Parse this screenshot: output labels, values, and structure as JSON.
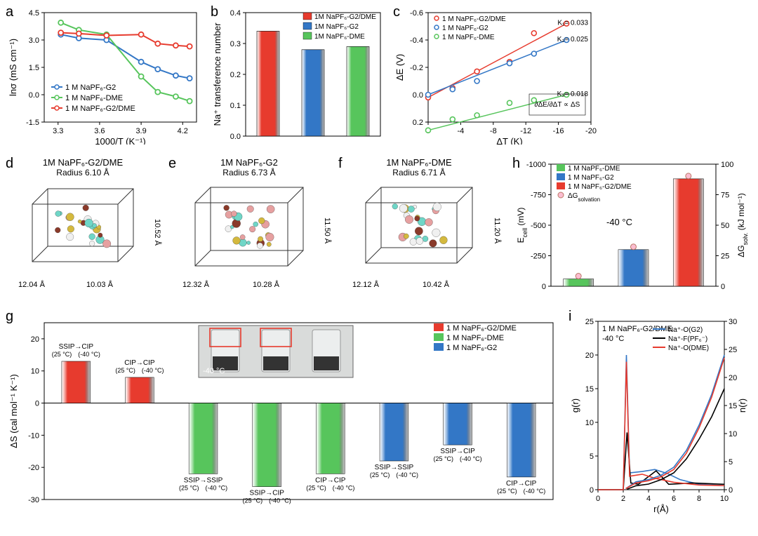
{
  "colors": {
    "red": "#e73b2e",
    "blue": "#3377c6",
    "green": "#57c55c",
    "pink": "#fbbdd1",
    "black": "#000000"
  },
  "panel_a": {
    "letter": "a",
    "xlabel": "1000/T (K⁻¹)",
    "ylabel": "lnσ (mS cm⁻¹)",
    "xlim": [
      3.2,
      4.3
    ],
    "ylim": [
      -1.5,
      4.5
    ],
    "xtick_step": 0.3,
    "ytick_step": 1.5,
    "series": [
      {
        "label": "1 M NaPF₆-G2",
        "color": "#3377c6",
        "x": [
          3.32,
          3.45,
          3.65,
          3.9,
          4.02,
          4.15,
          4.25
        ],
        "y": [
          3.3,
          3.1,
          3.0,
          1.8,
          1.4,
          1.05,
          0.9
        ]
      },
      {
        "label": "1 M NaPF₆-DME",
        "color": "#57c55c",
        "x": [
          3.32,
          3.45,
          3.65,
          3.9,
          4.02,
          4.15,
          4.25
        ],
        "y": [
          3.95,
          3.55,
          3.3,
          1.0,
          0.15,
          -0.1,
          -0.35
        ]
      },
      {
        "label": "1 M NaPF₆-G2/DME",
        "color": "#e73b2e",
        "x": [
          3.32,
          3.45,
          3.65,
          3.9,
          4.02,
          4.15,
          4.25
        ],
        "y": [
          3.4,
          3.35,
          3.25,
          3.3,
          2.8,
          2.7,
          2.65
        ]
      }
    ]
  },
  "panel_b": {
    "letter": "b",
    "ylabel": "Na⁺ transference number",
    "ylim": [
      0.0,
      0.4
    ],
    "ytick_step": 0.1,
    "bars": [
      {
        "label": "1M NaPF₆-G2/DME",
        "value": 0.34,
        "color": "#e73b2e"
      },
      {
        "label": "1M NaPF₆-G2",
        "value": 0.28,
        "color": "#3377c6"
      },
      {
        "label": "1M NaPF₆-DME",
        "value": 0.29,
        "color": "#57c55c"
      }
    ],
    "bar_width": 0.5
  },
  "panel_c": {
    "letter": "c",
    "xlabel": "ΔT (K)",
    "ylabel": "ΔE (V)",
    "xlim": [
      0,
      -20
    ],
    "ylim": [
      0.2,
      -0.6
    ],
    "xtick_step": -4,
    "ytick_step": -0.2,
    "series": [
      {
        "label": "1 M NaPF₆-G2/DME",
        "color": "#e73b2e",
        "k": "K₁= 0.033",
        "x": [
          0,
          -3,
          -6,
          -10,
          -13,
          -17
        ],
        "y": [
          0.02,
          -0.05,
          -0.17,
          -0.24,
          -0.45,
          -0.52
        ]
      },
      {
        "label": "1 M NaPF₆-G2",
        "color": "#3377c6",
        "k": "K₂= 0.025",
        "x": [
          0,
          -3,
          -6,
          -10,
          -13,
          -17
        ],
        "y": [
          0.0,
          -0.04,
          -0.1,
          -0.23,
          -0.3,
          -0.4
        ]
      },
      {
        "label": "1 M NaPF₆-DME",
        "color": "#57c55c",
        "k": "K₃= 0.018",
        "x": [
          0,
          -3,
          -6,
          -10,
          -13,
          -17
        ],
        "y": [
          0.26,
          0.18,
          0.15,
          0.06,
          0.04,
          0.0
        ]
      }
    ],
    "formula": "∂ΔE / ∂ΔT  ∝  ΔS"
  },
  "panel_d": {
    "letter": "d",
    "title": "1M NaPF₆-G2/DME",
    "radius": "Radius 6.10 Å",
    "dx": "12.04 Å",
    "dy": "10.03 Å",
    "dz": "10.52 Å"
  },
  "panel_e": {
    "letter": "e",
    "title": "1M NaPF₆-G2",
    "radius": "Radius 6.73 Å",
    "dx": "12.32 Å",
    "dy": "10.28 Å",
    "dz": "11.50 Å"
  },
  "panel_f": {
    "letter": "f",
    "title": "1M NaPF₆-DME",
    "radius": "Radius 6.71 Å",
    "dx": "12.12 Å",
    "dy": "10.42 Å",
    "dz": "11.20 Å"
  },
  "panel_h": {
    "letter": "h",
    "ylabel_left": "E₁ₑₗₗ (mV)",
    "ylabel_right": "ΔGₛₒₗᵥ. (kJ mol⁻¹)",
    "ylabel_left_html": "E<sub>cell</sub> (mV)",
    "ylabel_right_html": "ΔG<sub>solv.</sub> (kJ mol⁻¹)",
    "ylim_left": [
      0,
      -1000
    ],
    "ytick_left": 250,
    "ylim_right": [
      0,
      100
    ],
    "ytick_right": 25,
    "temp_label": "-40 °C",
    "bars": [
      {
        "label": "1 M NaPF₆-DME",
        "value": -60,
        "color": "#57c55c"
      },
      {
        "label": "1 M NaPF₆-G2",
        "value": -300,
        "color": "#3377c6"
      },
      {
        "label": "1 M NaPF₆-G2/DME",
        "value": -880,
        "color": "#e73b2e"
      }
    ],
    "dg_label": "ΔGₛₒₗᵥₐₜᵢₒₙ",
    "dg_label_html": "ΔG<sub>solvation</sub>",
    "dg_point_color": "#fbbdd1"
  },
  "panel_g": {
    "letter": "g",
    "ylabel": "ΔS (cal mol⁻¹ K⁻¹)",
    "ylim": [
      -30,
      25
    ],
    "ytick_step": 10,
    "legend": [
      {
        "label": "1 M NaPF₆-G2/DME",
        "color": "#e73b2e"
      },
      {
        "label": "1 M NaPF₆-DME",
        "color": "#57c55c"
      },
      {
        "label": "1 M NaPF₆-G2",
        "color": "#3377c6"
      }
    ],
    "bars": [
      {
        "group": 0,
        "color": "#e73b2e",
        "value": 13,
        "top": "SSIP→CIP",
        "bottom": "(25 °C) (-40 °C)"
      },
      {
        "group": 1,
        "color": "#e73b2e",
        "value": 8,
        "top": "CIP→CIP",
        "bottom": "(25 °C) (-40 °C)"
      },
      {
        "group": 2,
        "color": "#57c55c",
        "value": -22,
        "top": "SSIP→SSIP",
        "bottom": "(25 °C) (-40 °C)"
      },
      {
        "group": 3,
        "color": "#57c55c",
        "value": -26,
        "top": "SSIP→CIP",
        "bottom": "(25 °C) (-40 °C)"
      },
      {
        "group": 4,
        "color": "#57c55c",
        "value": -22,
        "top": "CIP→CIP",
        "bottom": "(25 °C) (-40 °C)"
      },
      {
        "group": 5,
        "color": "#3377c6",
        "value": -18,
        "top": "SSIP→SSIP",
        "bottom": "(25 °C) (-40 °C)"
      },
      {
        "group": 6,
        "color": "#3377c6",
        "value": -13,
        "top": "SSIP→CIP",
        "bottom": "(25 °C) (-40 °C)"
      },
      {
        "group": 7,
        "color": "#3377c6",
        "value": -23,
        "top": "CIP→CIP",
        "bottom": "(25 °C) (-40 °C)"
      }
    ],
    "photo_label": "-40 °C"
  },
  "panel_i": {
    "letter": "i",
    "xlabel": "r(Å)",
    "ylabel_left": "g(r)",
    "ylabel_right": "n(r)",
    "xlim": [
      0,
      10
    ],
    "ylim": [
      0,
      25
    ],
    "ylim_right": [
      0,
      30
    ],
    "xtick_step": 2,
    "ytick_step": 5,
    "title_text": "1 M NaPF₆-G2/DME",
    "temp_label": "-40 °C",
    "series": [
      {
        "label": "Na⁺-O(G2)",
        "color": "#3377c6"
      },
      {
        "label": "Na⁺-F(PF₆⁻)",
        "color": "#000000"
      },
      {
        "label": "Na⁺-O(DME)",
        "color": "#e73b2e"
      }
    ],
    "g_curves": {
      "blue": [
        [
          0,
          0
        ],
        [
          2.0,
          0
        ],
        [
          2.25,
          20
        ],
        [
          2.5,
          2.5
        ],
        [
          3.5,
          2.7
        ],
        [
          4.5,
          3.0
        ],
        [
          5.5,
          2.4
        ],
        [
          6.5,
          1.5
        ],
        [
          8,
          0.8
        ],
        [
          10,
          0.6
        ]
      ],
      "black": [
        [
          0,
          0
        ],
        [
          2.0,
          0
        ],
        [
          2.3,
          8.5
        ],
        [
          2.6,
          1.0
        ],
        [
          3.2,
          0.8
        ],
        [
          4.6,
          2.8
        ],
        [
          5.6,
          0.8
        ],
        [
          7.5,
          1.0
        ],
        [
          10,
          0.8
        ]
      ],
      "red": [
        [
          0,
          0
        ],
        [
          2.0,
          0
        ],
        [
          2.25,
          19
        ],
        [
          2.5,
          2.0
        ],
        [
          3.5,
          2.3
        ],
        [
          4.5,
          1.7
        ],
        [
          6.0,
          1.1
        ],
        [
          8,
          0.7
        ],
        [
          10,
          0.6
        ]
      ]
    },
    "n_curves": {
      "blue": [
        [
          2.2,
          0.2
        ],
        [
          3.0,
          1.4
        ],
        [
          4.0,
          1.8
        ],
        [
          5.0,
          2.6
        ],
        [
          6.0,
          4.0
        ],
        [
          7.0,
          7.0
        ],
        [
          8.0,
          11.5
        ],
        [
          9.0,
          17.0
        ],
        [
          10.0,
          24.0
        ]
      ],
      "black": [
        [
          2.3,
          0.1
        ],
        [
          3.0,
          0.7
        ],
        [
          4.0,
          1.0
        ],
        [
          5.0,
          1.8
        ],
        [
          6.0,
          3.0
        ],
        [
          7.0,
          5.5
        ],
        [
          8.0,
          9.0
        ],
        [
          9.0,
          13.0
        ],
        [
          10.0,
          18.0
        ]
      ],
      "red": [
        [
          2.2,
          0.2
        ],
        [
          3.0,
          1.2
        ],
        [
          4.0,
          1.6
        ],
        [
          5.0,
          2.3
        ],
        [
          6.0,
          3.6
        ],
        [
          7.0,
          6.5
        ],
        [
          8.0,
          11.0
        ],
        [
          9.0,
          16.5
        ],
        [
          10.0,
          23.5
        ]
      ]
    }
  }
}
